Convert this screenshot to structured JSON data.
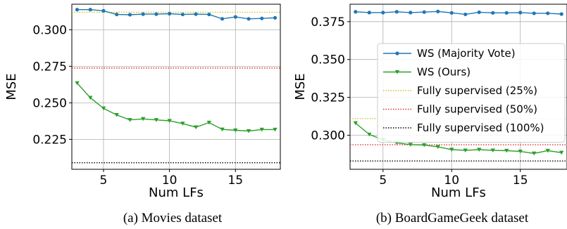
{
  "chart_data": [
    {
      "type": "line",
      "caption": "(a)  Movies dataset",
      "xlabel": "Num LFs",
      "ylabel": "MSE",
      "xlim": [
        2.6,
        18.4
      ],
      "ylim": [
        0.2045,
        0.3175
      ],
      "xticks": [
        5,
        10,
        15
      ],
      "yticks": [
        0.225,
        0.25,
        0.275,
        0.3
      ],
      "grid": true,
      "x": [
        3,
        4,
        5,
        6,
        7,
        8,
        9,
        10,
        11,
        12,
        13,
        14,
        15,
        16,
        17,
        18
      ],
      "series": [
        {
          "name": "WS (Majority Vote)",
          "color": "#1f77b4",
          "marker": "circle",
          "style": "solid",
          "values": [
            0.3138,
            0.3138,
            0.313,
            0.3105,
            0.3103,
            0.3107,
            0.3107,
            0.311,
            0.3105,
            0.3107,
            0.3105,
            0.3075,
            0.3088,
            0.3075,
            0.3078,
            0.3082
          ]
        },
        {
          "name": "WS (Ours)",
          "color": "#2ca02c",
          "marker": "triangle-down",
          "style": "solid",
          "values": [
            0.2635,
            0.2535,
            0.2462,
            0.2417,
            0.2383,
            0.239,
            0.2383,
            0.2377,
            0.2358,
            0.2333,
            0.2365,
            0.2318,
            0.2312,
            0.2307,
            0.2317,
            0.2317
          ]
        },
        {
          "name": "Fully supervised (25%)",
          "color": "#d4c21f",
          "marker": "none",
          "style": "dotted",
          "constant": 0.312
        },
        {
          "name": "Fully supervised (50%)",
          "color": "#e03030",
          "marker": "none",
          "style": "dotted",
          "constant": 0.2738
        },
        {
          "name": "Fully supervised (100%)",
          "color": "#000000",
          "marker": "none",
          "style": "dotted",
          "constant": 0.209
        }
      ]
    },
    {
      "type": "line",
      "caption": "(b)  BoardGameGeek dataset",
      "xlabel": "Num LFs",
      "ylabel": "MSE",
      "xlim": [
        2.6,
        18.4
      ],
      "ylim": [
        0.2775,
        0.3865
      ],
      "xticks": [
        5,
        10,
        15
      ],
      "yticks": [
        0.3,
        0.325,
        0.35,
        0.375
      ],
      "grid": true,
      "legend": "right",
      "x": [
        3,
        4,
        5,
        6,
        7,
        8,
        9,
        10,
        11,
        12,
        13,
        14,
        15,
        16,
        17,
        18
      ],
      "series": [
        {
          "name": "WS (Majority Vote)",
          "color": "#1f77b4",
          "marker": "circle",
          "style": "solid",
          "values": [
            0.3815,
            0.381,
            0.381,
            0.3815,
            0.381,
            0.3813,
            0.3817,
            0.3808,
            0.3798,
            0.3812,
            0.3808,
            0.3808,
            0.381,
            0.3805,
            0.3805,
            0.38
          ]
        },
        {
          "name": "WS (Ours)",
          "color": "#2ca02c",
          "marker": "triangle-down",
          "style": "solid",
          "values": [
            0.308,
            0.3005,
            0.297,
            0.295,
            0.2938,
            0.2935,
            0.2923,
            0.2905,
            0.29,
            0.2905,
            0.29,
            0.2898,
            0.2893,
            0.288,
            0.2898,
            0.2885
          ]
        },
        {
          "name": "Fully supervised (25%)",
          "color": "#d4c21f",
          "marker": "none",
          "style": "dotted",
          "constant": 0.311
        },
        {
          "name": "Fully supervised (50%)",
          "color": "#e03030",
          "marker": "none",
          "style": "dotted",
          "constant": 0.2937
        },
        {
          "name": "Fully supervised (100%)",
          "color": "#000000",
          "marker": "none",
          "style": "dotted",
          "constant": 0.283
        }
      ]
    }
  ]
}
